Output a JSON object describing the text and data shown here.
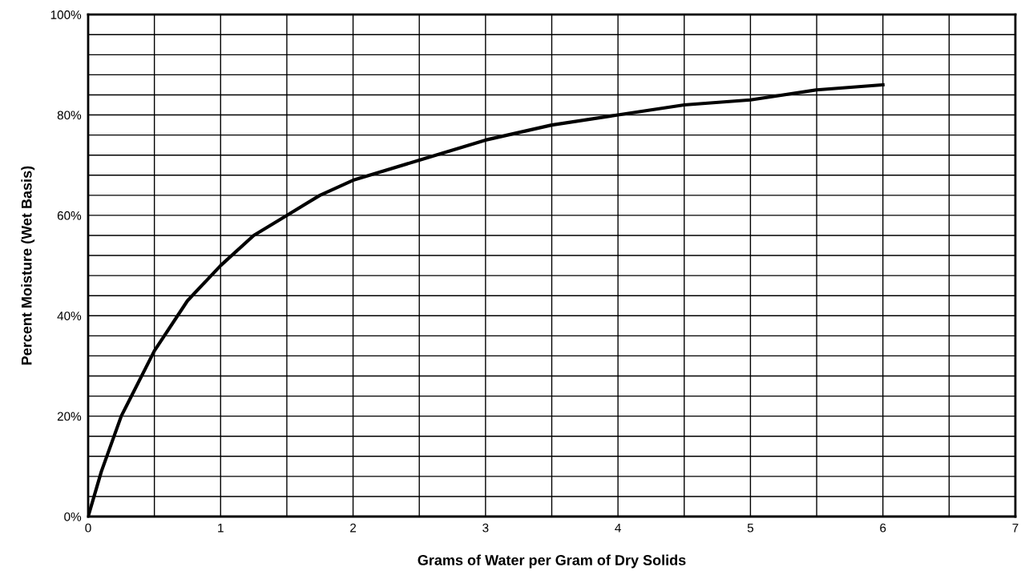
{
  "chart_data": {
    "type": "line",
    "xlabel": "Grams of Water per Gram of Dry Solids",
    "ylabel": "Percent Moisture (Wet Basis)",
    "series": [
      {
        "color": "#000000",
        "x": [
          0,
          0.1,
          0.25,
          0.5,
          0.75,
          1,
          1.25,
          1.5,
          1.75,
          2,
          2.5,
          3,
          3.5,
          4,
          4.5,
          5,
          5.5,
          6
        ],
        "values": [
          0,
          9,
          20,
          33,
          43,
          50,
          56,
          60,
          64,
          67,
          71,
          75,
          78,
          80,
          82,
          83,
          85,
          86
        ]
      }
    ],
    "xlim": [
      0,
      7
    ],
    "ylim": [
      0,
      100
    ],
    "xticks": [
      0,
      {
        "value": 0.5,
        "label": null
      },
      1,
      {
        "value": 1.5,
        "label": null
      },
      2,
      {
        "value": 2.5,
        "label": null
      },
      3,
      {
        "value": 3.5,
        "label": null
      },
      4,
      {
        "value": 4.5,
        "label": null
      },
      5,
      {
        "value": 5.5,
        "label": null
      },
      6,
      {
        "value": 6.5,
        "label": null
      },
      7
    ],
    "yticks": [
      {
        "value": 0,
        "label": "0%"
      },
      {
        "value": 4,
        "label": null
      },
      {
        "value": 8,
        "label": null
      },
      {
        "value": 12,
        "label": null
      },
      {
        "value": 16,
        "label": null
      },
      {
        "value": 20,
        "label": "20%"
      },
      {
        "value": 24,
        "label": null
      },
      {
        "value": 28,
        "label": null
      },
      {
        "value": 32,
        "label": null
      },
      {
        "value": 36,
        "label": null
      },
      {
        "value": 40,
        "label": "40%"
      },
      {
        "value": 44,
        "label": null
      },
      {
        "value": 48,
        "label": null
      },
      {
        "value": 52,
        "label": null
      },
      {
        "value": 56,
        "label": null
      },
      {
        "value": 60,
        "label": "60%"
      },
      {
        "value": 64,
        "label": null
      },
      {
        "value": 68,
        "label": null
      },
      {
        "value": 72,
        "label": null
      },
      {
        "value": 76,
        "label": null
      },
      {
        "value": 80,
        "label": "80%"
      },
      {
        "value": 84,
        "label": null
      },
      {
        "value": 88,
        "label": null
      },
      {
        "value": 92,
        "label": null
      },
      {
        "value": 96,
        "label": null
      },
      {
        "value": 100,
        "label": "100%"
      }
    ],
    "grid": true,
    "marker": "none",
    "line_style": "solid"
  }
}
